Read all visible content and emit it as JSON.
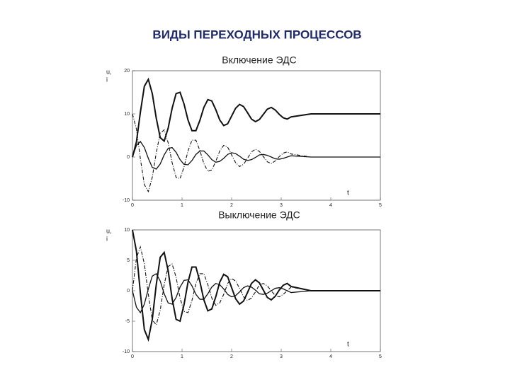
{
  "title": "ВИДЫ ПЕРЕХОДНЫХ ПРОЦЕССОВ",
  "chart_data": [
    {
      "type": "line",
      "title": "Включение ЭДС",
      "ylabel": [
        "u,",
        "i"
      ],
      "xlabel": "t",
      "xlim": [
        0,
        5
      ],
      "xticks": [
        0,
        1,
        2,
        3,
        4,
        5
      ],
      "ylim": [
        -10,
        20
      ],
      "yticks": [
        -10,
        0,
        10,
        20
      ],
      "x": [
        0,
        0.08,
        0.16,
        0.24,
        0.32,
        0.4,
        0.48,
        0.56,
        0.64,
        0.72,
        0.8,
        0.88,
        0.96,
        1.04,
        1.12,
        1.2,
        1.28,
        1.36,
        1.44,
        1.52,
        1.6,
        1.68,
        1.76,
        1.84,
        1.92,
        2,
        2.08,
        2.16,
        2.24,
        2.32,
        2.4,
        2.48,
        2.56,
        2.64,
        2.72,
        2.8,
        2.88,
        2.96,
        3.04,
        3.12,
        3.2,
        3.6,
        4,
        4.4,
        4.8,
        5
      ],
      "series": [
        {
          "color": "#111111",
          "style": "thick",
          "values": [
            0,
            3.5,
            10.4,
            16.4,
            18.0,
            14.7,
            9.0,
            4.5,
            3.7,
            6.7,
            11.3,
            14.7,
            15.0,
            12.3,
            8.6,
            6.1,
            6.1,
            8.5,
            11.5,
            13.3,
            13.0,
            11.0,
            8.6,
            7.3,
            7.7,
            9.5,
            11.3,
            12.2,
            11.7,
            10.3,
            8.8,
            8.2,
            8.7,
            9.9,
            11.1,
            11.5,
            10.9,
            9.9,
            9.1,
            8.8,
            9.3,
            10,
            10,
            10,
            10,
            10
          ]
        },
        {
          "color": "#111111",
          "style": "solid",
          "values": [
            0,
            2.7,
            3.6,
            2.2,
            -0.3,
            -2.4,
            -2.8,
            -1.6,
            0.5,
            2.0,
            2.2,
            1.1,
            -0.6,
            -1.7,
            -1.8,
            -0.8,
            0.6,
            1.4,
            1.4,
            0.5,
            -0.6,
            -1.2,
            -1.0,
            -0.3,
            0.6,
            1.0,
            0.8,
            0.2,
            -0.5,
            -0.8,
            -0.6,
            -0.1,
            0.5,
            0.6,
            0.4,
            0,
            -0.4,
            -0.5,
            -0.3,
            0,
            0.3,
            0,
            0,
            0,
            0,
            0
          ]
        },
        {
          "color": "#111111",
          "style": "dashdot",
          "values": [
            10,
            6.5,
            -0.4,
            -6.4,
            -8.0,
            -4.7,
            1.0,
            5.5,
            6.3,
            3.3,
            -1.3,
            -4.7,
            -5.0,
            -2.3,
            1.4,
            3.9,
            3.9,
            1.5,
            -1.5,
            -3.3,
            -3.0,
            -1.0,
            1.4,
            2.7,
            2.3,
            0.5,
            -1.3,
            -2.2,
            -1.7,
            -0.3,
            1.2,
            1.8,
            1.3,
            0.1,
            -1.1,
            -1.5,
            -0.9,
            0.1,
            0.9,
            1.2,
            0.7,
            0,
            0,
            0,
            0,
            0
          ]
        }
      ]
    },
    {
      "type": "line",
      "title": "Выключение ЭДС",
      "ylabel": [
        "u,",
        "i"
      ],
      "xlabel": "t",
      "xlim": [
        0,
        5
      ],
      "xticks": [
        0,
        1,
        2,
        3,
        4,
        5
      ],
      "ylim": [
        -10,
        10
      ],
      "yticks": [
        -10,
        -5,
        0,
        5,
        10
      ],
      "x": [
        0,
        0.08,
        0.16,
        0.24,
        0.32,
        0.4,
        0.48,
        0.56,
        0.64,
        0.72,
        0.8,
        0.88,
        0.96,
        1.04,
        1.12,
        1.2,
        1.28,
        1.36,
        1.44,
        1.52,
        1.6,
        1.68,
        1.76,
        1.84,
        1.92,
        2,
        2.08,
        2.16,
        2.24,
        2.32,
        2.4,
        2.48,
        2.56,
        2.64,
        2.72,
        2.8,
        2.88,
        2.96,
        3.04,
        3.12,
        3.2,
        3.6,
        4,
        4.4,
        4.8,
        5
      ],
      "series": [
        {
          "color": "#111111",
          "style": "thick",
          "values": [
            10,
            6.5,
            -0.4,
            -6.4,
            -8.0,
            -4.7,
            1.0,
            5.5,
            6.3,
            3.3,
            -1.3,
            -4.7,
            -5.0,
            -2.3,
            1.4,
            3.9,
            3.9,
            1.5,
            -1.5,
            -3.3,
            -3.0,
            -1.0,
            1.4,
            2.7,
            2.3,
            0.5,
            -1.3,
            -2.2,
            -1.7,
            -0.3,
            1.2,
            1.8,
            1.3,
            0.1,
            -1.1,
            -1.5,
            -0.9,
            0.1,
            0.9,
            1.2,
            0.7,
            0,
            0,
            0,
            0,
            0
          ]
        },
        {
          "color": "#111111",
          "style": "solid",
          "values": [
            0,
            -2.7,
            -3.6,
            -2.2,
            0.3,
            2.4,
            2.8,
            1.6,
            -0.5,
            -2.0,
            -2.2,
            -1.1,
            0.6,
            1.7,
            1.8,
            0.8,
            -0.6,
            -1.4,
            -1.4,
            -0.5,
            0.6,
            1.2,
            1.0,
            0.3,
            -0.6,
            -1.0,
            -0.8,
            -0.2,
            0.5,
            0.8,
            0.6,
            0.1,
            -0.5,
            -0.6,
            -0.4,
            0,
            0.4,
            0.5,
            0.3,
            0,
            -0.3,
            0,
            0,
            0,
            0,
            0
          ]
        },
        {
          "color": "#111111",
          "style": "dashdot",
          "values": [
            0,
            5.4,
            7.2,
            4.4,
            -0.6,
            -4.8,
            -5.6,
            -3.2,
            1.0,
            4.0,
            4.4,
            2.2,
            -1.2,
            -3.4,
            -3.6,
            -1.6,
            1.2,
            2.8,
            2.8,
            1.0,
            -1.2,
            -2.4,
            -2.0,
            -0.6,
            1.2,
            2.0,
            1.6,
            0.4,
            -1.0,
            -1.6,
            -1.2,
            -0.2,
            1.0,
            1.2,
            0.8,
            0,
            -0.8,
            -1.0,
            -0.6,
            0,
            0.6,
            0,
            0,
            0,
            0,
            0
          ]
        }
      ]
    }
  ]
}
